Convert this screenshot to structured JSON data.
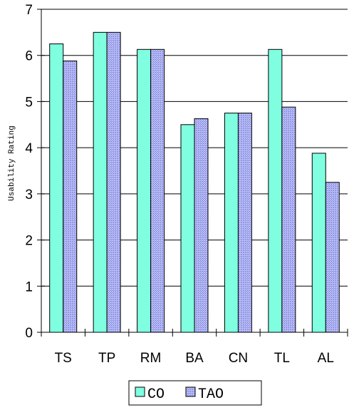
{
  "chart_data": {
    "type": "bar",
    "categories": [
      "TS",
      "TP",
      "RM",
      "BA",
      "CN",
      "TL",
      "AL"
    ],
    "series": [
      {
        "name": "CO",
        "values": [
          6.25,
          6.5,
          6.13,
          4.5,
          4.75,
          6.13,
          3.88
        ],
        "color": "#80FFE0",
        "pattern": "solid"
      },
      {
        "name": "TAO",
        "values": [
          5.88,
          6.5,
          6.13,
          4.63,
          4.75,
          4.88,
          3.25
        ],
        "color": "#9999EE",
        "pattern": "crosshatch"
      }
    ],
    "ylabel": "Usability Rating",
    "xlabel": "",
    "ylim": [
      0,
      7
    ],
    "yticks": [
      0,
      1,
      2,
      3,
      4,
      5,
      6,
      7
    ],
    "grid": true,
    "legend": "bottom"
  }
}
